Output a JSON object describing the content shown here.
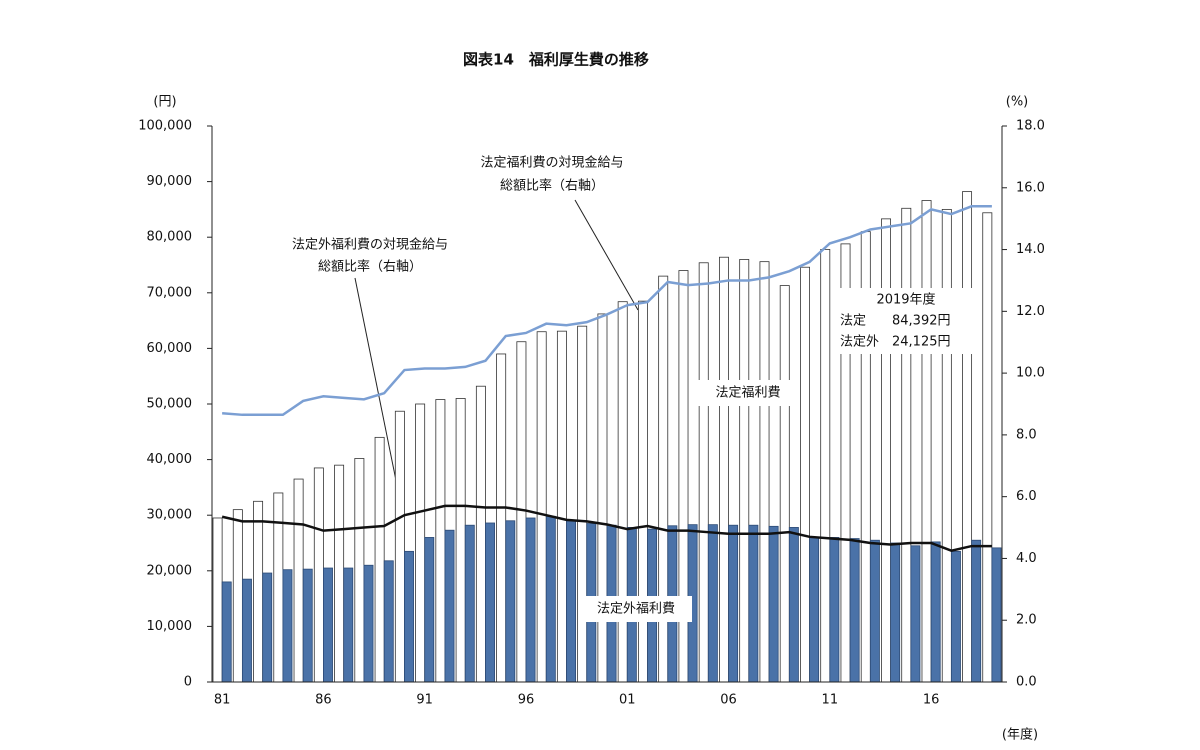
{
  "chart_data": {
    "type": "bar_line",
    "title": "図表14　福利厚生費の推移",
    "y_unit": "(円)",
    "y2_unit": "(%)",
    "x_unit": "(年度)",
    "categories": [
      "81",
      null,
      null,
      null,
      null,
      "86",
      null,
      null,
      null,
      null,
      "91",
      null,
      null,
      null,
      null,
      "96",
      null,
      null,
      null,
      null,
      "01",
      null,
      null,
      null,
      null,
      "06",
      null,
      null,
      null,
      null,
      "11",
      null,
      null,
      null,
      null,
      "16",
      null,
      null,
      null
    ],
    "series": [
      {
        "name": "法定福利費",
        "type": "bar",
        "color": "#ffffff",
        "values": [
          29500,
          31000,
          32500,
          34000,
          36500,
          38500,
          39000,
          40200,
          44000,
          48700,
          50000,
          50800,
          51000,
          53200,
          59000,
          61200,
          63000,
          63100,
          64000,
          66200,
          68400,
          68500,
          73000,
          74000,
          75400,
          76400,
          76000,
          75600,
          71300,
          74600,
          77800,
          78800,
          81000,
          83300,
          85200,
          86600,
          85000,
          88200,
          84392
        ]
      },
      {
        "name": "法定外福利費",
        "type": "bar",
        "color": "#4a72a8",
        "values": [
          18000,
          18500,
          19600,
          20200,
          20300,
          20500,
          20500,
          21000,
          21800,
          23500,
          26000,
          27300,
          28200,
          28600,
          29000,
          29500,
          29800,
          29000,
          28500,
          28200,
          27800,
          27500,
          28100,
          28300,
          28300,
          28200,
          28200,
          28000,
          27800,
          26000,
          26000,
          25800,
          25500,
          25000,
          24500,
          25200,
          23500,
          25500,
          24125
        ]
      },
      {
        "name": "法定福利費の対現金給与総額比率（右軸）",
        "type": "line",
        "axis": "y2",
        "color": "#7b9fd3",
        "values": [
          8.7,
          8.65,
          8.65,
          8.65,
          9.1,
          9.25,
          9.2,
          9.15,
          9.35,
          10.1,
          10.15,
          10.15,
          10.2,
          10.4,
          11.2,
          11.3,
          11.6,
          11.55,
          11.65,
          11.9,
          12.2,
          12.3,
          12.95,
          12.85,
          12.9,
          13.0,
          13.0,
          13.1,
          13.3,
          13.6,
          14.2,
          14.4,
          14.65,
          14.75,
          14.85,
          15.3,
          15.15,
          15.4,
          15.4
        ]
      },
      {
        "name": "法定外福利費の対現金給与総額比率（右軸）",
        "type": "line",
        "axis": "y2",
        "color": "#111111",
        "values": [
          5.35,
          5.2,
          5.2,
          5.15,
          5.1,
          4.9,
          4.95,
          5.0,
          5.05,
          5.4,
          5.55,
          5.7,
          5.7,
          5.65,
          5.65,
          5.55,
          5.4,
          5.25,
          5.2,
          5.1,
          4.95,
          5.05,
          4.9,
          4.9,
          4.85,
          4.8,
          4.8,
          4.8,
          4.85,
          4.7,
          4.65,
          4.6,
          4.5,
          4.45,
          4.5,
          4.5,
          4.25,
          4.4,
          4.4
        ]
      }
    ],
    "ylim": [
      0,
      100000
    ],
    "yticks": [
      0,
      {
        "value": 10000,
        "label": "10,000"
      },
      {
        "value": 20000,
        "label": "20,000"
      },
      {
        "value": 30000,
        "label": "30,000"
      },
      {
        "value": 40000,
        "label": "40,000"
      },
      {
        "value": 50000,
        "label": "50,000"
      },
      {
        "value": 60000,
        "label": "60,000"
      },
      {
        "value": 70000,
        "label": "70,000"
      },
      {
        "value": 80000,
        "label": "80,000"
      },
      {
        "value": 90000,
        "label": "90,000"
      },
      {
        "value": 100000,
        "label": "100,000"
      }
    ],
    "y2lim": [
      0,
      18
    ],
    "y2ticks": [
      {
        "value": 0,
        "label": "0.0"
      },
      {
        "value": 2,
        "label": "2.0"
      },
      {
        "value": 4,
        "label": "4.0"
      },
      {
        "value": 6,
        "label": "6.0"
      },
      {
        "value": 8,
        "label": "8.0"
      },
      {
        "value": 10,
        "label": "10.0"
      },
      {
        "value": 12,
        "label": "12.0"
      },
      {
        "value": 14,
        "label": "14.0"
      },
      {
        "value": 16,
        "label": "16.0"
      },
      {
        "value": 18,
        "label": "18.0"
      }
    ],
    "annotations": {
      "upper_ratio": [
        "法定福利費の対現金給与",
        "総額比率（右軸）"
      ],
      "lower_ratio": [
        "法定外福利費の対現金給与",
        "総額比率（右軸）"
      ],
      "box": [
        "2019年度",
        "法定　　84,392円",
        "法定外　24,125円"
      ]
    }
  }
}
